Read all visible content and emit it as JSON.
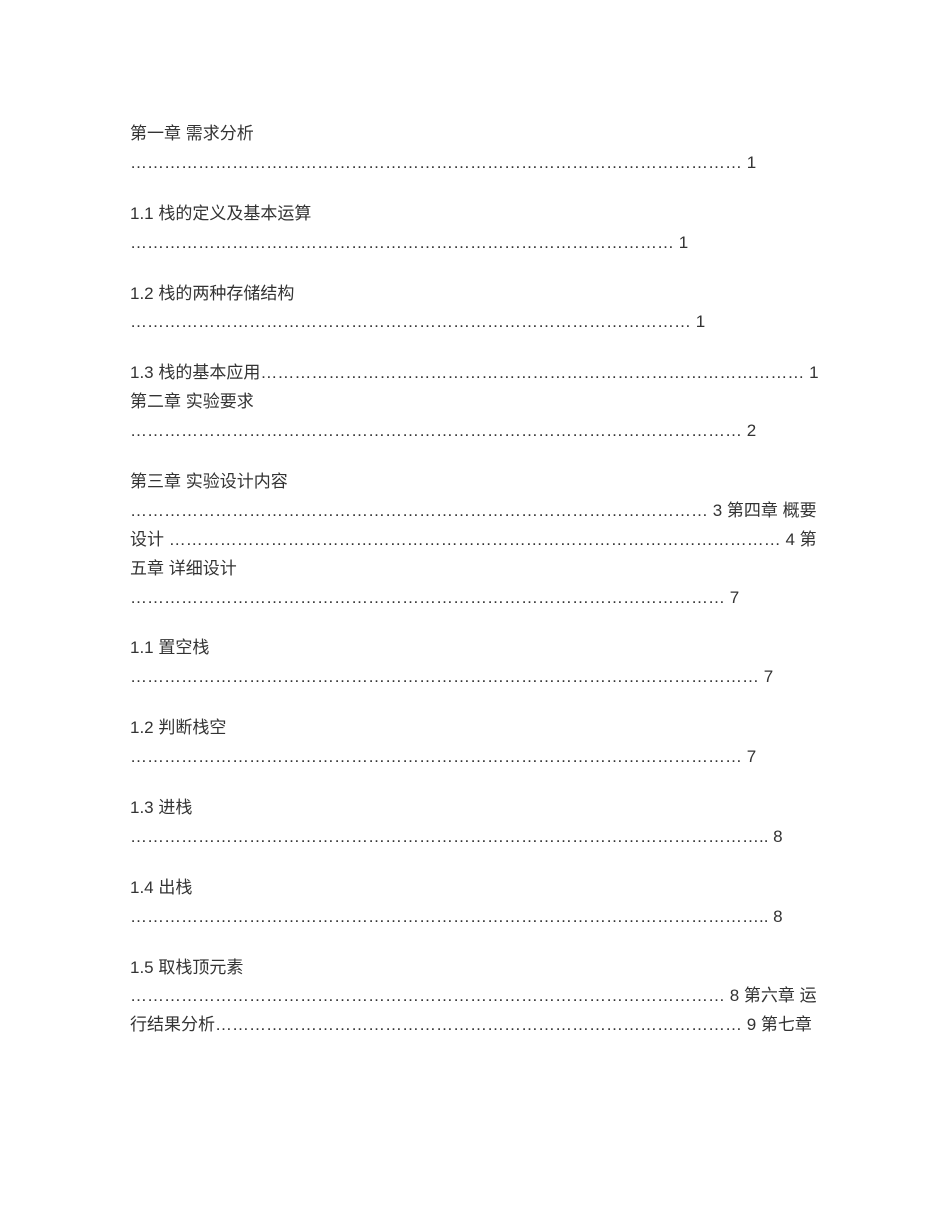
{
  "toc": {
    "lines": [
      {
        "text": "第一章 需求分析",
        "break": true
      },
      {
        "text": "……………………………………………………………………………………………… 1",
        "break": true,
        "spacer": true
      },
      {
        "text": "1.1 栈的定义及基本运算",
        "break": true
      },
      {
        "text": "……………………………………………………………………………………  1",
        "break": true,
        "spacer": true
      },
      {
        "text": "1.2 栈的两种存储结构",
        "break": true
      },
      {
        "text": "………………………………………………………………………………………  1",
        "break": true,
        "spacer": true
      },
      {
        "text": "1.3 栈的基本应用…………………………………………………………………………………… 1 第二章 实验要求",
        "break": true
      },
      {
        "text": "………………………………………………………………………………………………  2",
        "break": true,
        "spacer": true
      },
      {
        "text": "第三章 实验设计内容",
        "break": true
      },
      {
        "text": "…………………………………………………………………………………………  3 第四章 概要设计 ……………………………………………………………………………………………… 4 第五章 详细设计",
        "break": true
      },
      {
        "text": "……………………………………………………………………………………………  7",
        "break": true,
        "spacer": true
      },
      {
        "text": "1.1 置空栈",
        "break": true
      },
      {
        "text": "………………………………………………………………………………………………… 7",
        "break": true,
        "spacer": true
      },
      {
        "text": "1.2 判断栈空",
        "break": true
      },
      {
        "text": "………………………………………………………………………………………………  7",
        "break": true,
        "spacer": true
      },
      {
        "text": "1.3 进栈",
        "break": true
      },
      {
        "text": "………………………………………………………………………………………………….. 8",
        "break": true,
        "spacer": true
      },
      {
        "text": "1.4 出栈",
        "break": true
      },
      {
        "text": "………………………………………………………………………………………………….. 8",
        "break": true,
        "spacer": true
      },
      {
        "text": "1.5 取栈顶元素",
        "break": true
      },
      {
        "text": "…………………………………………………………………………………………… 8 第六章 运行结果分析………………………………………………………………………………… 9 第七章",
        "break": true
      }
    ]
  }
}
